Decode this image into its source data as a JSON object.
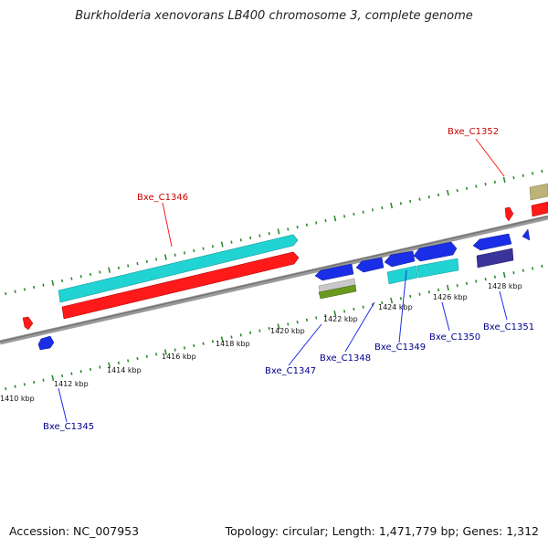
{
  "header": {
    "title": "Burkholderia xenovorans LB400 chromosome 3, complete genome"
  },
  "footer": {
    "accession": "Accession: NC_007953",
    "topology": "Topology: circular; Length: 1,471,779 bp; Genes: 1,312"
  },
  "colors": {
    "backbone": "#8a8a8a",
    "tick": "#2e8b2e",
    "gene_red": "#ff1a1a",
    "gene_cyan": "#22d3d3",
    "gene_blue": "#1a2ee8",
    "gene_navy": "#3a3399",
    "gene_green": "#6b9a1f",
    "gene_khaki": "#bdb37a",
    "label_red": "#cc0000",
    "label_blue": "#00008b"
  },
  "scale": {
    "unit": "kbp",
    "labels": [
      "1410 kbp",
      "1412 kbp",
      "1414 kbp",
      "1416 kbp",
      "1418 kbp",
      "1420 kbp",
      "1422 kbp",
      "1424 kbp",
      "1426 kbp",
      "1428 kbp"
    ]
  },
  "genes": [
    {
      "name": "Bxe_C1345",
      "label_color": "blue"
    },
    {
      "name": "Bxe_C1346",
      "label_color": "red"
    },
    {
      "name": "Bxe_C1347",
      "label_color": "blue"
    },
    {
      "name": "Bxe_C1348",
      "label_color": "blue"
    },
    {
      "name": "Bxe_C1349",
      "label_color": "blue"
    },
    {
      "name": "Bxe_C1350",
      "label_color": "blue"
    },
    {
      "name": "Bxe_C1351",
      "label_color": "blue"
    },
    {
      "name": "Bxe_C1352",
      "label_color": "red"
    }
  ]
}
